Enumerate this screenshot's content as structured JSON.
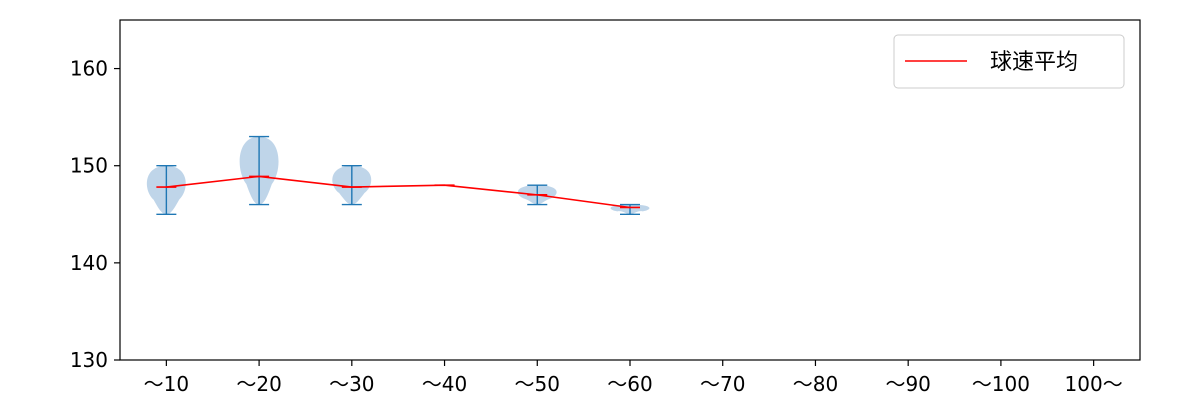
{
  "chart_data": {
    "type": "violin",
    "categories": [
      "〜10",
      "〜20",
      "〜30",
      "〜40",
      "〜50",
      "〜60",
      "〜70",
      "〜80",
      "〜90",
      "〜100",
      "100〜"
    ],
    "ylim": [
      130,
      165
    ],
    "yticks": [
      130,
      140,
      150,
      160
    ],
    "grid": false,
    "legend_position": "top-right",
    "series": [
      {
        "name": "球速平均",
        "color": "#ff0000",
        "values": [
          147.8,
          148.9,
          147.8,
          148.0,
          147.0,
          145.7,
          null,
          null,
          null,
          null,
          null
        ]
      }
    ],
    "distributions": [
      {
        "category": "〜10",
        "min": 145,
        "max": 150
      },
      {
        "category": "〜20",
        "min": 146,
        "max": 153
      },
      {
        "category": "〜30",
        "min": 146,
        "max": 150
      },
      {
        "category": "〜40",
        "min": 148,
        "max": 148
      },
      {
        "category": "〜50",
        "min": 146,
        "max": 148
      },
      {
        "category": "〜60",
        "min": 145,
        "max": 146
      }
    ],
    "colors": {
      "violin_fill": "#bcd3e8",
      "violin_line": "#1f77b4",
      "mean_line": "#ff0000"
    }
  }
}
